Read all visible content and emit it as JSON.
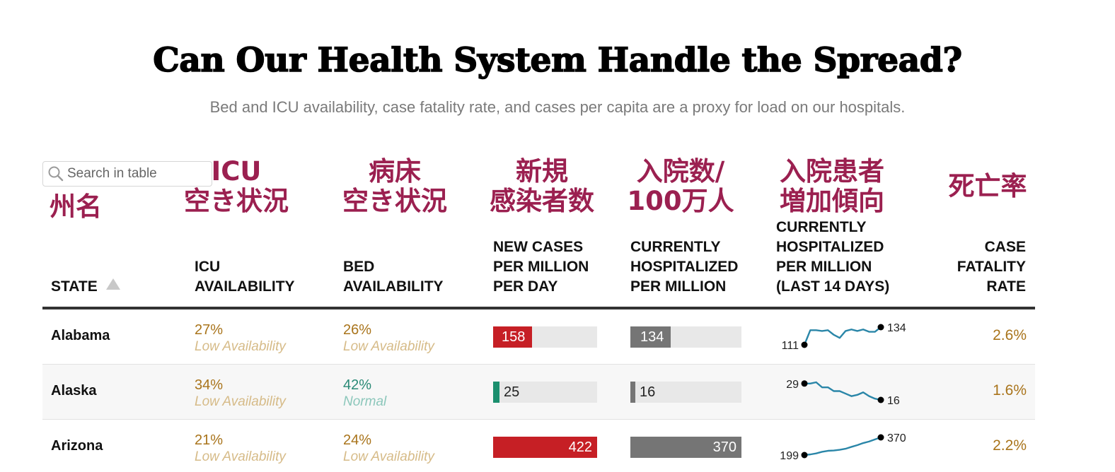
{
  "title": "Can Our Health System Handle the Spread?",
  "subtitle": "Bed and ICU availability, case fatality rate, and cases per capita are a proxy for load on our hospitals.",
  "search": {
    "placeholder": "Search in table",
    "icon": "search-icon"
  },
  "colors": {
    "annotation": "#9b2050",
    "low_pct": "#a9741b",
    "low_label": "#d6bb88",
    "normal_pct": "#2a8a76",
    "normal_label": "#8cc7bb",
    "new_cases_bar": "#c61f25",
    "new_cases_bar_low": "#1b8f6e",
    "hospitalized_bar": "#757575",
    "sparkline": "#2a86a8"
  },
  "annotations_jp": {
    "state": "州名",
    "icu_line1": "ICU",
    "icu_line2": "空き状況",
    "bed_line1": "病床",
    "bed_line2": "空き状況",
    "new_line1": "新規",
    "new_line2": "感染者数",
    "hosp_line1": "入院数/",
    "hosp_line2": "100万人",
    "trend_line1": "入院患者",
    "trend_line2": "増加傾向",
    "cfr": "死亡率"
  },
  "columns": {
    "state": "STATE",
    "icu": [
      "ICU",
      "AVAILABILITY"
    ],
    "bed": [
      "BED",
      "AVAILABILITY"
    ],
    "new_cases": [
      "NEW CASES",
      "PER MILLION",
      "PER DAY"
    ],
    "hospitalized": [
      "CURRENTLY",
      "HOSPITALIZED",
      "PER MILLION"
    ],
    "trend": [
      "CURRENTLY",
      "HOSPITALIZED",
      "PER MILLION",
      "(LAST 14 DAYS)"
    ],
    "cfr": [
      "CASE",
      "FATALITY",
      "RATE"
    ]
  },
  "scale": {
    "new_cases_max": 422,
    "hospitalized_max": 370
  },
  "rows": [
    {
      "state": "Alabama",
      "icu": {
        "pct": "27%",
        "label": "Low Availability",
        "level": "low"
      },
      "bed": {
        "pct": "26%",
        "label": "Low Availability",
        "level": "low"
      },
      "new_cases": 158,
      "new_cases_label": "158",
      "hospitalized": 134,
      "hospitalized_label": "134",
      "trend": {
        "start_label": "111",
        "end_label": "134",
        "values": [
          111,
          130,
          130,
          129,
          130,
          124,
          120,
          129,
          131,
          129,
          131,
          128,
          128,
          134
        ]
      },
      "cfr": "2.6%"
    },
    {
      "state": "Alaska",
      "icu": {
        "pct": "34%",
        "label": "Low Availability",
        "level": "low"
      },
      "bed": {
        "pct": "42%",
        "label": "Normal",
        "level": "normal"
      },
      "new_cases": 25,
      "new_cases_label": "25",
      "hospitalized": 16,
      "hospitalized_label": "16",
      "trend": {
        "start_label": "29",
        "end_label": "16",
        "values": [
          29,
          29,
          30,
          26,
          26,
          23,
          23,
          21,
          19,
          20,
          22,
          19,
          17,
          16
        ]
      },
      "cfr": "1.6%"
    },
    {
      "state": "Arizona",
      "icu": {
        "pct": "21%",
        "label": "Low Availability",
        "level": "low"
      },
      "bed": {
        "pct": "24%",
        "label": "Low Availability",
        "level": "low"
      },
      "new_cases": 422,
      "new_cases_label": "422",
      "hospitalized": 370,
      "hospitalized_label": "370",
      "trend": {
        "start_label": "199",
        "end_label": "370",
        "values": [
          199,
          205,
          215,
          230,
          240,
          243,
          250,
          260,
          278,
          295,
          315,
          330,
          350,
          370
        ]
      },
      "cfr": "2.2%"
    }
  ]
}
